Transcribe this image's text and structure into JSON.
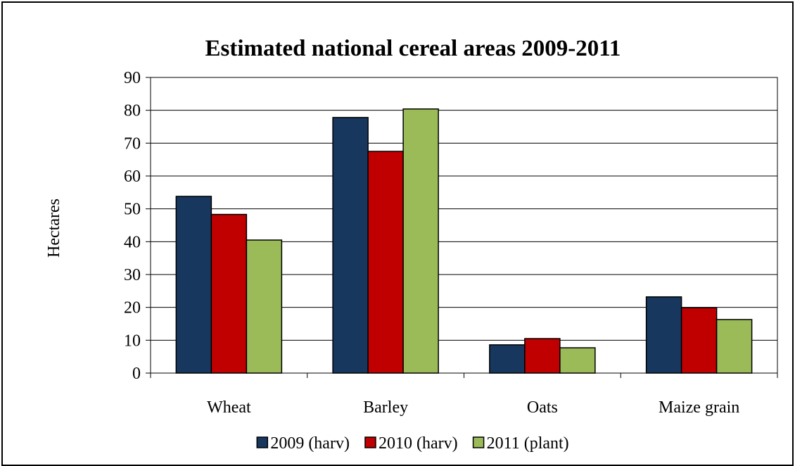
{
  "chart_data": {
    "type": "bar",
    "title": "Estimated national cereal areas 2009-2011",
    "xlabel": "",
    "ylabel": "Hectares",
    "categories": [
      "Wheat",
      "Barley",
      "Oats",
      "Maize grain"
    ],
    "series": [
      {
        "name": "2009 (harv)",
        "color": "#17375E",
        "values": [
          53.8,
          77.8,
          8.6,
          23.2
        ]
      },
      {
        "name": "2010 (harv)",
        "color": "#C00000",
        "values": [
          48.3,
          67.5,
          10.5,
          19.9
        ]
      },
      {
        "name": "2011 (plant)",
        "color": "#9BBB59",
        "values": [
          40.5,
          80.4,
          7.7,
          16.3
        ]
      }
    ],
    "ylim": [
      0,
      90
    ],
    "yticks": [
      0,
      10,
      20,
      30,
      40,
      50,
      60,
      70,
      80,
      90
    ],
    "grid": true,
    "legend_position": "bottom"
  }
}
